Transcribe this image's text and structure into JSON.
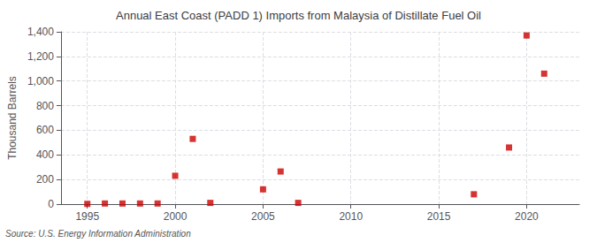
{
  "chart_data": {
    "type": "scatter",
    "title": "Annual East Coast (PADD 1) Imports from Malaysia of Distillate Fuel Oil",
    "ylabel": "Thousand Barrels",
    "source": "Source: U.S. Energy Information Administration",
    "x": [
      1995,
      1996,
      1997,
      1998,
      1999,
      2000,
      2001,
      2002,
      2005,
      2006,
      2007,
      2017,
      2019,
      2020,
      2021
    ],
    "values": [
      2,
      5,
      5,
      5,
      5,
      230,
      530,
      10,
      120,
      265,
      10,
      80,
      460,
      1370,
      1060
    ],
    "color": "#cc0000",
    "marker": "square",
    "xlim": [
      1993.5,
      2023
    ],
    "xticks": [
      1995,
      2000,
      2005,
      2010,
      2015,
      2020
    ],
    "ylim": [
      0,
      1400
    ],
    "yticks": [
      0,
      200,
      400,
      600,
      800,
      {
        "value": 1000,
        "label": "1,000"
      },
      {
        "value": 1200,
        "label": "1,200"
      },
      {
        "value": 1400,
        "label": "1,400"
      }
    ],
    "grid": true
  }
}
